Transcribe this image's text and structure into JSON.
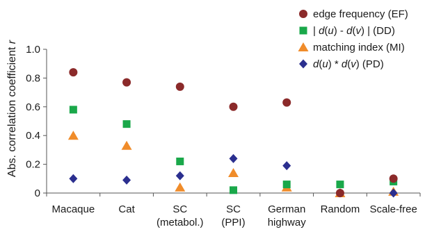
{
  "chart_data": {
    "type": "scatter",
    "title": "",
    "xlabel": "",
    "ylabel": {
      "prefix": "Abs. correlation coefficient ",
      "var": "r"
    },
    "ylim": [
      0,
      1.0
    ],
    "yticks": [
      "0",
      "0.2",
      "0.4",
      "0.6",
      "0.8",
      "1.0"
    ],
    "ytick_values": [
      0,
      0.2,
      0.4,
      0.6,
      0.8,
      1.0
    ],
    "grid": false,
    "legend_position": "top-right",
    "categories": [
      [
        "Macaque"
      ],
      [
        "Cat"
      ],
      [
        "SC",
        "(metabol.)"
      ],
      [
        "SC",
        "(PPI)"
      ],
      [
        "German",
        "highway"
      ],
      [
        "Random"
      ],
      [
        "Scale-free"
      ]
    ],
    "series": [
      {
        "key": "EF",
        "marker": "circle",
        "color": "#8b2a2a",
        "legend": [
          {
            "t": "edge frequency (EF)",
            "i": false
          }
        ],
        "values": [
          0.84,
          0.77,
          0.74,
          0.6,
          0.63,
          0.0,
          0.1
        ]
      },
      {
        "key": "DD",
        "marker": "square",
        "color": "#1aa84a",
        "legend": [
          {
            "t": "| ",
            "i": false
          },
          {
            "t": "d",
            "i": true
          },
          {
            "t": "(",
            "i": false
          },
          {
            "t": "u",
            "i": true
          },
          {
            "t": ") - ",
            "i": false
          },
          {
            "t": "d",
            "i": true
          },
          {
            "t": "(",
            "i": false
          },
          {
            "t": "v",
            "i": true
          },
          {
            "t": ") |   (DD)",
            "i": false
          }
        ],
        "values": [
          0.58,
          0.48,
          0.22,
          0.02,
          0.06,
          0.06,
          0.08
        ]
      },
      {
        "key": "MI",
        "marker": "triangle",
        "color": "#f08c2a",
        "legend": [
          {
            "t": "matching index (MI)",
            "i": false
          }
        ],
        "values": [
          0.4,
          0.33,
          0.04,
          0.14,
          0.04,
          0.0,
          0.01
        ]
      },
      {
        "key": "PD",
        "marker": "diamond",
        "color": "#2b2f8f",
        "legend": [
          {
            "t": "d",
            "i": true
          },
          {
            "t": "(",
            "i": false
          },
          {
            "t": "u",
            "i": true
          },
          {
            "t": ") * ",
            "i": false
          },
          {
            "t": "d",
            "i": true
          },
          {
            "t": "(",
            "i": false
          },
          {
            "t": "v",
            "i": true
          },
          {
            "t": ")   (PD)",
            "i": false
          }
        ],
        "values": [
          0.1,
          0.09,
          0.12,
          0.24,
          0.19,
          0.0,
          0.0
        ]
      }
    ]
  }
}
